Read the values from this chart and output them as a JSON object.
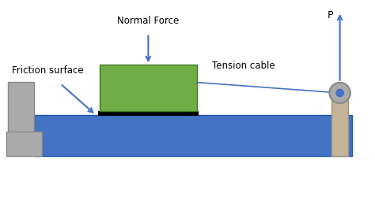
{
  "bg_color": "#ffffff",
  "blue_color": "#4472C4",
  "green_color": "#70AD47",
  "black_color": "#000000",
  "gray_color": "#AAAAAA",
  "tan_color": "#C4B49A",
  "arrow_color": "#4472C4",
  "label_color": "#000000",
  "labels": {
    "friction": "Friction surface",
    "normal": "Normal Force",
    "tension": "Tension cable",
    "P": "P"
  },
  "figsize": [
    4.74,
    2.64
  ],
  "dpi": 100,
  "xlim": [
    0,
    10
  ],
  "ylim": [
    0,
    5.6
  ]
}
